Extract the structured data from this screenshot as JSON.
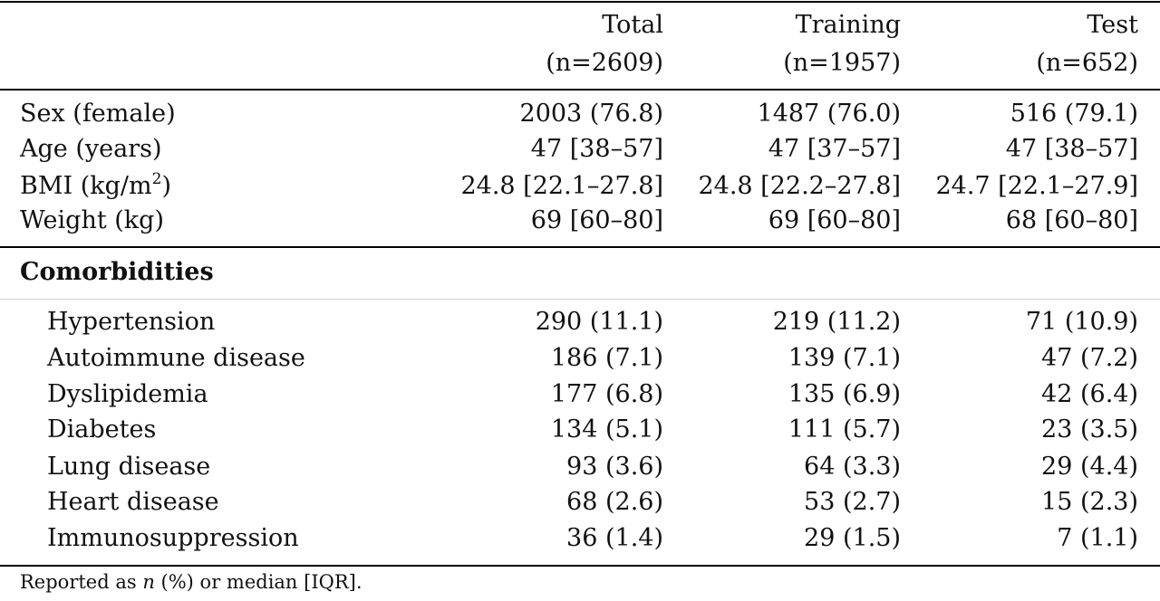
{
  "columns": [
    {
      "name": "Total",
      "n": "(n=2609)"
    },
    {
      "name": "Training",
      "n": "(n=1957)"
    },
    {
      "name": "Test",
      "n": "(n=652)"
    }
  ],
  "demographics": [
    {
      "label": "Sex (female)",
      "values": [
        "2003 (76.8)",
        "1487 (76.0)",
        "516 (79.1)"
      ]
    },
    {
      "label": "Age (years)",
      "values": [
        "47 [38–57]",
        "47 [37–57]",
        "47 [38–57]"
      ]
    },
    {
      "label_prefix": "BMI (kg/m",
      "label_sup": "2",
      "label_suffix": ")",
      "values": [
        "24.8 [22.1–27.8]",
        "24.8 [22.2–27.8]",
        "24.7 [22.1–27.9]"
      ]
    },
    {
      "label": "Weight (kg)",
      "values": [
        "69 [60–80]",
        "69 [60–80]",
        "68 [60–80]"
      ]
    }
  ],
  "section_title": "Comorbidities",
  "comorbidities": [
    {
      "label": "Hypertension",
      "values": [
        "290 (11.1)",
        "219 (11.2)",
        "71 (10.9)"
      ]
    },
    {
      "label": "Autoimmune disease",
      "values": [
        "186 (7.1)",
        "139 (7.1)",
        "47 (7.2)"
      ]
    },
    {
      "label": "Dyslipidemia",
      "values": [
        "177 (6.8)",
        "135 (6.9)",
        "42 (6.4)"
      ]
    },
    {
      "label": "Diabetes",
      "values": [
        "134 (5.1)",
        "111 (5.7)",
        "23 (3.5)"
      ]
    },
    {
      "label": "Lung disease",
      "values": [
        "93 (3.6)",
        "64 (3.3)",
        "29 (4.4)"
      ]
    },
    {
      "label": "Heart disease",
      "values": [
        "68 (2.6)",
        "53 (2.7)",
        "15 (2.3)"
      ]
    },
    {
      "label": "Immunosuppression",
      "values": [
        "36 (1.4)",
        "29 (1.5)",
        "7 (1.1)"
      ]
    }
  ],
  "footnote": {
    "prefix": "Reported as ",
    "italic": "n",
    "suffix": " (%) or median [IQR]."
  }
}
